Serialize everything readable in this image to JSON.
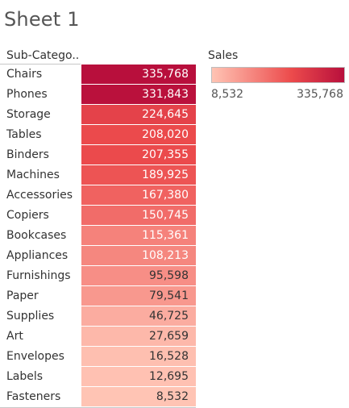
{
  "title": "Sheet 1",
  "column_header": "Sub-Catego..",
  "legend": {
    "title": "Sales",
    "min_label": "8,532",
    "max_label": "335,768"
  },
  "colors": {
    "low": "#ffc4b4",
    "mid": "#ec4b4c",
    "high": "#b80f3c",
    "light_text": "#ffffff",
    "dark_text": "#333333"
  },
  "chart_data": {
    "type": "heatmap",
    "title": "Sheet 1",
    "row_dimension": "Sub-Catego..",
    "measure": "Sales",
    "color_range": [
      8532,
      335768
    ],
    "rows": [
      {
        "label": "Chairs",
        "value": 335768,
        "display": "335,768"
      },
      {
        "label": "Phones",
        "value": 331843,
        "display": "331,843"
      },
      {
        "label": "Storage",
        "value": 224645,
        "display": "224,645"
      },
      {
        "label": "Tables",
        "value": 208020,
        "display": "208,020"
      },
      {
        "label": "Binders",
        "value": 207355,
        "display": "207,355"
      },
      {
        "label": "Machines",
        "value": 189925,
        "display": "189,925"
      },
      {
        "label": "Accessories",
        "value": 167380,
        "display": "167,380"
      },
      {
        "label": "Copiers",
        "value": 150745,
        "display": "150,745"
      },
      {
        "label": "Bookcases",
        "value": 115361,
        "display": "115,361"
      },
      {
        "label": "Appliances",
        "value": 108213,
        "display": "108,213"
      },
      {
        "label": "Furnishings",
        "value": 95598,
        "display": "95,598"
      },
      {
        "label": "Paper",
        "value": 79541,
        "display": "79,541"
      },
      {
        "label": "Supplies",
        "value": 46725,
        "display": "46,725"
      },
      {
        "label": "Art",
        "value": 27659,
        "display": "27,659"
      },
      {
        "label": "Envelopes",
        "value": 16528,
        "display": "16,528"
      },
      {
        "label": "Labels",
        "value": 12695,
        "display": "12,695"
      },
      {
        "label": "Fasteners",
        "value": 8532,
        "display": "8,532"
      }
    ]
  }
}
